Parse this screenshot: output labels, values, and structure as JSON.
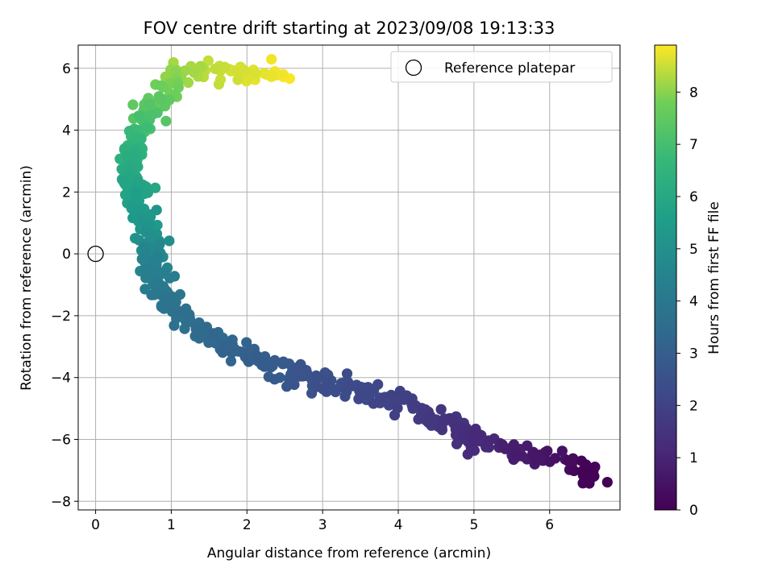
{
  "chart_data": {
    "type": "scatter",
    "title": "FOV centre drift starting at 2023/09/08 19:13:33",
    "xlabel": "Angular distance from reference (arcmin)",
    "ylabel": "Rotation from reference (arcmin)",
    "xlim": [
      -0.23,
      6.93
    ],
    "ylim": [
      -8.28,
      6.75
    ],
    "xticks": [
      0,
      1,
      2,
      3,
      4,
      5,
      6
    ],
    "yticks": [
      -8,
      -6,
      -4,
      -2,
      0,
      2,
      4,
      6
    ],
    "grid": true,
    "legend": {
      "position": "top-right",
      "entries": [
        "Reference platepar"
      ]
    },
    "reference_point": {
      "name": "Reference platepar",
      "x": 0,
      "y": 0
    },
    "colorbar": {
      "label": "Hours from first FF file",
      "colormap": "viridis",
      "min": 0,
      "max": 8.9,
      "ticks": [
        0,
        1,
        2,
        3,
        4,
        5,
        6,
        7,
        8
      ]
    },
    "curve": [
      {
        "x": 6.6,
        "y": -7.3,
        "hours": 0.0
      },
      {
        "x": 6.3,
        "y": -6.8,
        "hours": 0.3
      },
      {
        "x": 6.0,
        "y": -6.6,
        "hours": 0.55
      },
      {
        "x": 5.5,
        "y": -6.4,
        "hours": 0.85
      },
      {
        "x": 5.0,
        "y": -6.0,
        "hours": 1.25
      },
      {
        "x": 4.6,
        "y": -5.4,
        "hours": 1.6
      },
      {
        "x": 4.1,
        "y": -4.9,
        "hours": 1.9
      },
      {
        "x": 3.6,
        "y": -4.5,
        "hours": 2.2
      },
      {
        "x": 3.0,
        "y": -4.1,
        "hours": 2.5
      },
      {
        "x": 2.5,
        "y": -3.8,
        "hours": 2.8
      },
      {
        "x": 2.0,
        "y": -3.3,
        "hours": 3.1
      },
      {
        "x": 1.6,
        "y": -2.8,
        "hours": 3.35
      },
      {
        "x": 1.2,
        "y": -2.2,
        "hours": 3.65
      },
      {
        "x": 0.9,
        "y": -1.3,
        "hours": 4.0
      },
      {
        "x": 0.75,
        "y": -0.3,
        "hours": 4.5
      },
      {
        "x": 0.7,
        "y": 0.7,
        "hours": 5.1
      },
      {
        "x": 0.55,
        "y": 1.8,
        "hours": 5.7
      },
      {
        "x": 0.45,
        "y": 2.9,
        "hours": 6.2
      },
      {
        "x": 0.55,
        "y": 4.0,
        "hours": 6.9
      },
      {
        "x": 0.8,
        "y": 5.0,
        "hours": 7.6
      },
      {
        "x": 1.2,
        "y": 5.8,
        "hours": 8.2
      },
      {
        "x": 1.8,
        "y": 5.95,
        "hours": 8.55
      },
      {
        "x": 2.6,
        "y": 5.75,
        "hours": 8.9
      }
    ],
    "sample_count": 620
  }
}
